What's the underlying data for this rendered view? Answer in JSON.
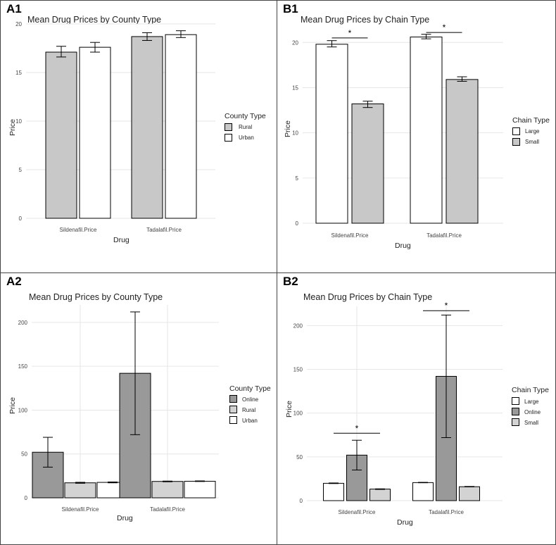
{
  "panels": {
    "A1": {
      "letter": "A1",
      "title": "Mean Drug Prices by County Type"
    },
    "B1": {
      "letter": "B1",
      "title": "Mean Drug Prices by Chain Type"
    },
    "A2": {
      "letter": "A2",
      "title": "Mean Drug Prices by County Type"
    },
    "B2": {
      "letter": "B2",
      "title": "Mean Drug Prices by Chain Type"
    }
  },
  "chart_data": [
    {
      "id": "A1",
      "type": "bar",
      "title": "Mean Drug Prices by County Type",
      "xlabel": "Drug",
      "ylabel": "Price",
      "categories": [
        "Sildenafil.Price",
        "Tadalafil.Price"
      ],
      "ylim": [
        0,
        20
      ],
      "yticks": [
        0,
        5,
        10,
        15,
        20
      ],
      "legend_title": "County Type",
      "legend_position": "right",
      "series": [
        {
          "name": "Rural",
          "color": "#c8c8c8",
          "values": [
            17.1,
            18.7
          ],
          "err_low": [
            16.6,
            18.3
          ],
          "err_high": [
            17.7,
            19.1
          ]
        },
        {
          "name": "Urban",
          "color": "#ffffff",
          "values": [
            17.6,
            18.9
          ],
          "err_low": [
            17.1,
            18.6
          ],
          "err_high": [
            18.1,
            19.3
          ]
        }
      ],
      "significance": []
    },
    {
      "id": "B1",
      "type": "bar",
      "title": "Mean Drug Prices by Chain Type",
      "xlabel": "Drug",
      "ylabel": "Price",
      "categories": [
        "Sildenafil.Price",
        "Tadalafil.Price"
      ],
      "ylim": [
        0,
        21.5
      ],
      "yticks": [
        0,
        5,
        10,
        15,
        20
      ],
      "legend_title": "Chain Type",
      "legend_position": "right",
      "series": [
        {
          "name": "Large",
          "color": "#ffffff",
          "values": [
            19.8,
            20.6
          ],
          "err_low": [
            19.5,
            20.4
          ],
          "err_high": [
            20.2,
            20.9
          ]
        },
        {
          "name": "Small",
          "color": "#c8c8c8",
          "values": [
            13.2,
            15.9
          ],
          "err_low": [
            12.8,
            15.7
          ],
          "err_high": [
            13.5,
            16.2
          ]
        }
      ],
      "significance": [
        {
          "category": 0,
          "from": 0,
          "to": 1,
          "y": 20.5,
          "label": "*"
        },
        {
          "category": 1,
          "from": 0,
          "to": 1,
          "y": 21.1,
          "label": "*"
        }
      ]
    },
    {
      "id": "A2",
      "type": "bar",
      "title": "Mean Drug Prices by County Type",
      "xlabel": "Drug",
      "ylabel": "Price",
      "categories": [
        "Sildenafil.Price",
        "Tadalafil.Price"
      ],
      "ylim": [
        0,
        220
      ],
      "yticks": [
        0,
        50,
        100,
        150,
        200
      ],
      "legend_title": "County Type",
      "legend_position": "right",
      "series": [
        {
          "name": "Online",
          "color": "#999999",
          "values": [
            52,
            142
          ],
          "err_low": [
            35,
            72
          ],
          "err_high": [
            69,
            212
          ]
        },
        {
          "name": "Rural",
          "color": "#d3d3d3",
          "values": [
            17.1,
            18.7
          ],
          "err_low": [
            16.6,
            18.3
          ],
          "err_high": [
            17.7,
            19.1
          ]
        },
        {
          "name": "Urban",
          "color": "#ffffff",
          "values": [
            17.6,
            18.9
          ],
          "err_low": [
            17.1,
            18.6
          ],
          "err_high": [
            18.1,
            19.3
          ]
        }
      ],
      "significance": []
    },
    {
      "id": "B2",
      "type": "bar",
      "title": "Mean Drug Prices by Chain Type",
      "xlabel": "Drug",
      "ylabel": "Price",
      "categories": [
        "Sildenafil.Price",
        "Tadalafil.Price"
      ],
      "ylim": [
        0,
        222
      ],
      "yticks": [
        0,
        50,
        100,
        150,
        200
      ],
      "legend_title": "Chain Type",
      "legend_position": "right",
      "series": [
        {
          "name": "Large",
          "color": "#ffffff",
          "values": [
            19.8,
            20.6
          ],
          "err_low": [
            19.5,
            20.4
          ],
          "err_high": [
            20.2,
            20.9
          ]
        },
        {
          "name": "Online",
          "color": "#999999",
          "values": [
            52,
            142
          ],
          "err_low": [
            35,
            72
          ],
          "err_high": [
            69,
            212
          ]
        },
        {
          "name": "Small",
          "color": "#d3d3d3",
          "values": [
            13.2,
            15.9
          ],
          "err_low": [
            12.8,
            15.7
          ],
          "err_high": [
            13.5,
            16.2
          ]
        }
      ],
      "significance": [
        {
          "category": 0,
          "from": 0,
          "to": 2,
          "y": 77,
          "label": "*"
        },
        {
          "category": 1,
          "from": 0,
          "to": 2,
          "y": 217,
          "label": "*"
        }
      ]
    }
  ]
}
